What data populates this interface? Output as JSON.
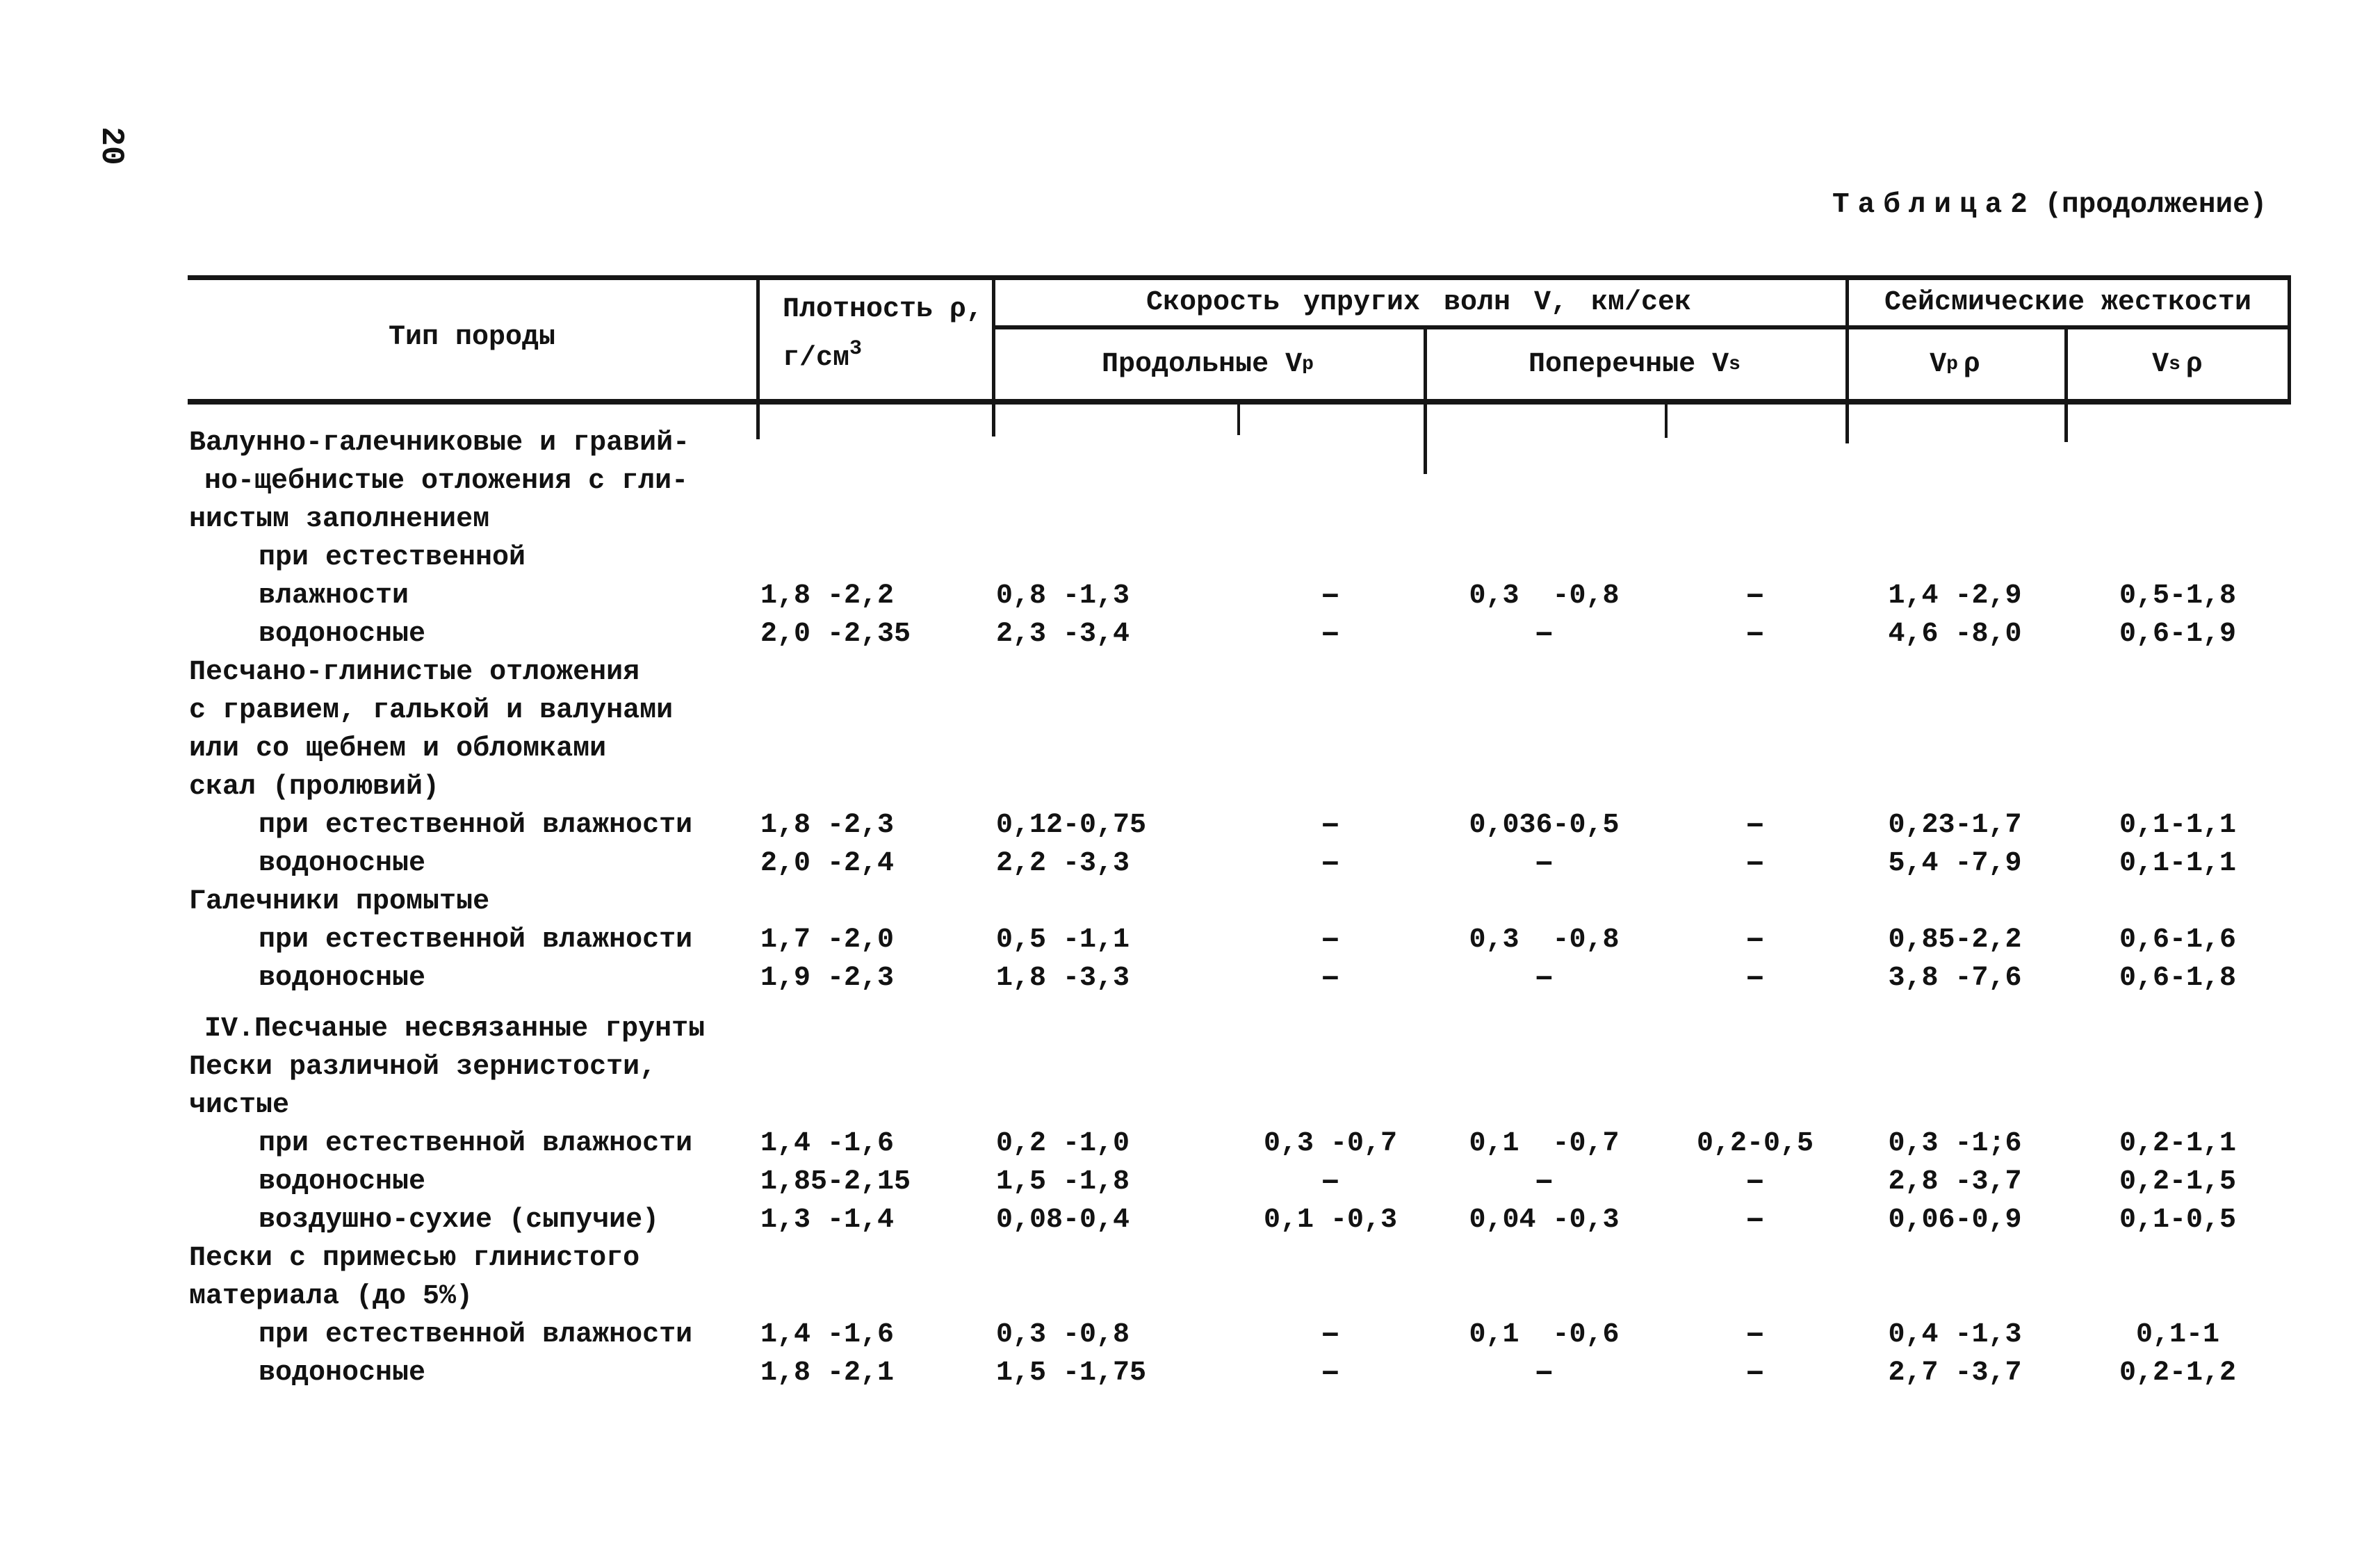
{
  "page_number": "20",
  "caption": {
    "title_word": "Таблица",
    "title_number": "2",
    "title_suffix": "(продолжение)"
  },
  "table": {
    "columns": {
      "type": "Тип породы",
      "density_line1": "Плотность ρ,",
      "density_line2": "г/см",
      "density_sup": "3",
      "velocity_group": "Скорость упругих волн V, км/сек",
      "longitudinal_label": "Продольные",
      "longitudinal_sym": "V",
      "longitudinal_sub": "p",
      "transverse_label": "Поперечные",
      "transverse_sym": "V",
      "transverse_sub": "s",
      "stiffness_group": "Сейсмические жесткости",
      "vp_rho_sym": "V",
      "vp_rho_sub": "p",
      "vp_rho_rho": "ρ",
      "vs_rho_sym": "V",
      "vs_rho_sub": "s",
      "vs_rho_rho": "ρ"
    },
    "rows": [
      {
        "label": "Валунно-галечниковые и гравий-",
        "ind": 0,
        "cells": [
          "",
          "",
          "",
          "",
          "",
          "",
          ""
        ]
      },
      {
        "label": "но-щебнистые отложения с гли-",
        "ind": 1,
        "cells": [
          "",
          "",
          "",
          "",
          "",
          "",
          ""
        ]
      },
      {
        "label": "нистым заполнением",
        "ind": 0,
        "cells": [
          "",
          "",
          "",
          "",
          "",
          "",
          ""
        ]
      },
      {
        "label": "при естественной",
        "ind": 2,
        "cells": [
          "",
          "",
          "",
          "",
          "",
          "",
          ""
        ]
      },
      {
        "label": "влажности",
        "ind": 2,
        "cells": [
          "1,8 -2,2",
          "0,8 -1,3",
          "-",
          "0,3  -0,8",
          "-",
          "1,4 -2,9",
          "0,5-1,8"
        ]
      },
      {
        "label": "водоносные",
        "ind": 2,
        "cells": [
          "2,0 -2,35",
          "2,3 -3,4",
          "-",
          "-",
          "-",
          "4,6 -8,0",
          "0,6-1,9"
        ]
      },
      {
        "label": "Песчано-глинистые отложения",
        "ind": 0,
        "cells": [
          "",
          "",
          "",
          "",
          "",
          "",
          ""
        ]
      },
      {
        "label": "с гравием, галькой и валунами",
        "ind": 0,
        "cells": [
          "",
          "",
          "",
          "",
          "",
          "",
          ""
        ]
      },
      {
        "label": "или со щебнем и обломками",
        "ind": 0,
        "cells": [
          "",
          "",
          "",
          "",
          "",
          "",
          ""
        ]
      },
      {
        "label": "скал (пролювий)",
        "ind": 0,
        "cells": [
          "",
          "",
          "",
          "",
          "",
          "",
          ""
        ]
      },
      {
        "label": "при естественной влажности",
        "ind": 2,
        "cells": [
          "1,8 -2,3",
          "0,12-0,75",
          "-",
          "0,036-0,5",
          "-",
          "0,23-1,7",
          "0,1-1,1"
        ]
      },
      {
        "label": "водоносные",
        "ind": 2,
        "cells": [
          "2,0 -2,4",
          "2,2 -3,3",
          "-",
          "-",
          "-",
          "5,4 -7,9",
          "0,1-1,1"
        ]
      },
      {
        "label": "Галечники промытые",
        "ind": 0,
        "cells": [
          "",
          "",
          "",
          "",
          "",
          "",
          ""
        ]
      },
      {
        "label": "при естественной влажности",
        "ind": 2,
        "cells": [
          "1,7 -2,0",
          "0,5 -1,1",
          "-",
          "0,3  -0,8",
          "-",
          "0,85-2,2",
          "0,6-1,6"
        ]
      },
      {
        "label": "водоносные",
        "ind": 2,
        "cells": [
          "1,9 -2,3",
          "1,8 -3,3",
          "-",
          "-",
          "-",
          "3,8 -7,6",
          "0,6-1,8"
        ]
      },
      {
        "label": "IV.Песчаные несвязанные грунты",
        "ind": 1,
        "gap": true,
        "cells": [
          "",
          "",
          "",
          "",
          "",
          "",
          ""
        ]
      },
      {
        "label": "Пески различной зернистости,",
        "ind": 0,
        "cells": [
          "",
          "",
          "",
          "",
          "",
          "",
          ""
        ]
      },
      {
        "label": "чистые",
        "ind": 0,
        "cells": [
          "",
          "",
          "",
          "",
          "",
          "",
          ""
        ]
      },
      {
        "label": "при естественной влажности",
        "ind": 2,
        "cells": [
          "1,4 -1,6",
          "0,2 -1,0",
          "0,3 -0,7",
          "0,1  -0,7",
          "0,2-0,5",
          "0,3 -1;6",
          "0,2-1,1"
        ]
      },
      {
        "label": "водоносные",
        "ind": 2,
        "cells": [
          "1,85-2,15",
          "1,5 -1,8",
          "-",
          "-",
          "-",
          "2,8 -3,7",
          "0,2-1,5"
        ]
      },
      {
        "label": "воздушно-сухие (сыпучие)",
        "ind": 2,
        "cells": [
          "1,3 -1,4",
          "0,08-0,4",
          "0,1 -0,3",
          "0,04 -0,3",
          "-",
          "0,06-0,9",
          "0,1-0,5"
        ]
      },
      {
        "label": "Пески с примесью глинистого",
        "ind": 0,
        "cells": [
          "",
          "",
          "",
          "",
          "",
          "",
          ""
        ]
      },
      {
        "label": "материала (до 5%)",
        "ind": 0,
        "cells": [
          "",
          "",
          "",
          "",
          "",
          "",
          ""
        ]
      },
      {
        "label": "при естественной влажности",
        "ind": 2,
        "cells": [
          "1,4 -1,6",
          "0,3 -0,8",
          "-",
          "0,1  -0,6",
          "-",
          "0,4 -1,3",
          "0,1-1"
        ]
      },
      {
        "label": "водоносные",
        "ind": 2,
        "cells": [
          "1,8 -2,1",
          "1,5 -1,75",
          "-",
          "-",
          "-",
          "2,7 -3,7",
          "0,2-1,2"
        ]
      }
    ]
  }
}
